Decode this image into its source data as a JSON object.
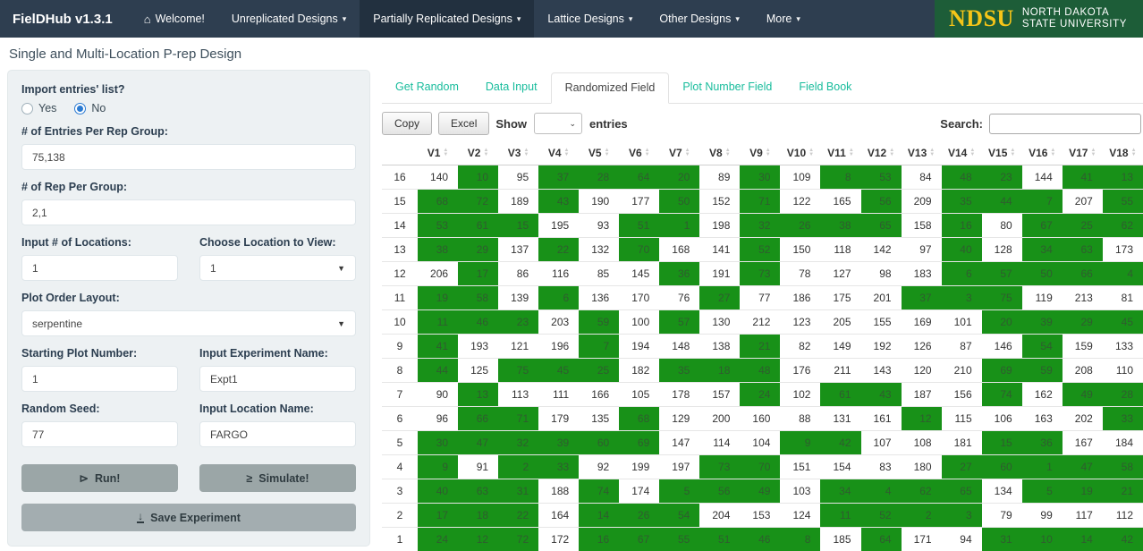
{
  "navbar": {
    "brand": "FielDHub v1.3.1",
    "items": [
      {
        "label": "Welcome!",
        "icon": "home",
        "caret": false,
        "active": false
      },
      {
        "label": "Unreplicated Designs",
        "caret": true,
        "active": false
      },
      {
        "label": "Partially Replicated Designs",
        "caret": true,
        "active": true
      },
      {
        "label": "Lattice Designs",
        "caret": true,
        "active": false
      },
      {
        "label": "Other Designs",
        "caret": true,
        "active": false
      },
      {
        "label": "More",
        "caret": true,
        "active": false
      }
    ],
    "logo": {
      "acronym": "NDSU",
      "line1": "North Dakota",
      "line2": "State University"
    }
  },
  "page_title": "Single and Multi-Location P-rep Design",
  "sidebar": {
    "import_label": "Import entries' list?",
    "radio_yes": "Yes",
    "radio_no": "No",
    "radio_selected": "No",
    "entries_per_rep": {
      "label": "# of Entries Per Rep Group:",
      "value": "75,138"
    },
    "rep_per_group": {
      "label": "# of Rep Per Group:",
      "value": "2,1"
    },
    "locations": {
      "label": "Input # of Locations:",
      "value": "1"
    },
    "location_view": {
      "label": "Choose Location to View:",
      "value": "1"
    },
    "plot_order": {
      "label": "Plot Order Layout:",
      "value": "serpentine"
    },
    "starting_plot": {
      "label": "Starting Plot Number:",
      "value": "1"
    },
    "experiment_name": {
      "label": "Input Experiment Name:",
      "value": "Expt1"
    },
    "random_seed": {
      "label": "Random Seed:",
      "value": "77"
    },
    "location_name": {
      "label": "Input Location Name:",
      "value": "FARGO"
    },
    "run_label": "Run!",
    "simulate_label": "Simulate!",
    "save_label": "Save Experiment"
  },
  "tabs": [
    {
      "label": "Get Random",
      "active": false
    },
    {
      "label": "Data Input",
      "active": false
    },
    {
      "label": "Randomized Field",
      "active": true
    },
    {
      "label": "Plot Number Field",
      "active": false
    },
    {
      "label": "Field Book",
      "active": false
    }
  ],
  "table_controls": {
    "copy": "Copy",
    "excel": "Excel",
    "show": "Show",
    "entries": "entries",
    "show_value": "",
    "search_label": "Search:",
    "search_value": ""
  },
  "table": {
    "columns": [
      "V1",
      "V2",
      "V3",
      "V4",
      "V5",
      "V6",
      "V7",
      "V8",
      "V9",
      "V10",
      "V11",
      "V12",
      "V13",
      "V14",
      "V15",
      "V16",
      "V17",
      "V18"
    ],
    "rows": [
      {
        "label": "16",
        "values": [
          140,
          10,
          95,
          37,
          28,
          64,
          20,
          89,
          30,
          109,
          8,
          53,
          84,
          48,
          23,
          144,
          41,
          13
        ],
        "green": "010111101011011011"
      },
      {
        "label": "15",
        "values": [
          68,
          72,
          189,
          43,
          190,
          177,
          50,
          152,
          71,
          122,
          165,
          56,
          209,
          35,
          44,
          7,
          207,
          55
        ],
        "green": "110100101001011101"
      },
      {
        "label": "14",
        "values": [
          53,
          61,
          15,
          195,
          93,
          51,
          1,
          198,
          32,
          26,
          38,
          65,
          158,
          16,
          80,
          67,
          25,
          62
        ],
        "green": "111001101111010111"
      },
      {
        "label": "13",
        "values": [
          38,
          29,
          137,
          22,
          132,
          70,
          168,
          141,
          52,
          150,
          118,
          142,
          97,
          40,
          128,
          34,
          63,
          173
        ],
        "green": "110101001000010110"
      },
      {
        "label": "12",
        "values": [
          206,
          17,
          86,
          116,
          85,
          145,
          36,
          191,
          73,
          78,
          127,
          98,
          183,
          6,
          57,
          50,
          66,
          4
        ],
        "green": "010000101000011111"
      },
      {
        "label": "11",
        "values": [
          19,
          58,
          139,
          6,
          136,
          170,
          76,
          27,
          77,
          186,
          175,
          201,
          37,
          3,
          75,
          119,
          213,
          81
        ],
        "green": "110100010000111000"
      },
      {
        "label": "10",
        "values": [
          11,
          46,
          23,
          203,
          59,
          100,
          57,
          130,
          212,
          123,
          205,
          155,
          169,
          101,
          20,
          39,
          29,
          45
        ],
        "green": "111010100000001111"
      },
      {
        "label": "9",
        "values": [
          41,
          193,
          121,
          196,
          7,
          194,
          148,
          138,
          21,
          82,
          149,
          192,
          126,
          87,
          146,
          54,
          159,
          133
        ],
        "green": "100010001000000100"
      },
      {
        "label": "8",
        "values": [
          44,
          125,
          75,
          45,
          25,
          182,
          35,
          18,
          48,
          176,
          211,
          143,
          120,
          210,
          69,
          59,
          208,
          110
        ],
        "green": "101110111000001100"
      },
      {
        "label": "7",
        "values": [
          90,
          13,
          113,
          111,
          166,
          105,
          178,
          157,
          24,
          102,
          61,
          43,
          187,
          156,
          74,
          162,
          49,
          28
        ],
        "green": "010000001011001011"
      },
      {
        "label": "6",
        "values": [
          96,
          66,
          71,
          179,
          135,
          68,
          129,
          200,
          160,
          88,
          131,
          161,
          12,
          115,
          106,
          163,
          202,
          33
        ],
        "green": "011001000000100001"
      },
      {
        "label": "5",
        "values": [
          30,
          47,
          32,
          39,
          60,
          69,
          147,
          114,
          104,
          9,
          42,
          107,
          108,
          181,
          15,
          36,
          167,
          184
        ],
        "green": "111111000110001100"
      },
      {
        "label": "4",
        "values": [
          9,
          91,
          2,
          33,
          92,
          199,
          197,
          73,
          70,
          151,
          154,
          83,
          180,
          27,
          60,
          1,
          47,
          58
        ],
        "green": "101100011000011111"
      },
      {
        "label": "3",
        "values": [
          40,
          63,
          31,
          188,
          74,
          174,
          5,
          56,
          49,
          103,
          34,
          4,
          62,
          65,
          134,
          5,
          19,
          21
        ],
        "green": "111010111011110111"
      },
      {
        "label": "2",
        "values": [
          17,
          18,
          22,
          164,
          14,
          26,
          54,
          204,
          153,
          124,
          11,
          52,
          2,
          3,
          79,
          99,
          117,
          112
        ],
        "green": "111011100011110000"
      },
      {
        "label": "1",
        "values": [
          24,
          12,
          72,
          172,
          16,
          67,
          55,
          51,
          46,
          8,
          185,
          64,
          171,
          94,
          31,
          10,
          14,
          42
        ],
        "green": "111011111101001111"
      }
    ]
  },
  "colors": {
    "navbar": "#2e3e50",
    "navbar-active": "#22303f",
    "teal": "#18bc9c",
    "ndsu-green": "#1d5d38",
    "ndsu-yellow": "#f5c518",
    "green": "#189118",
    "green-text": "#2f5d2f",
    "accent-blue": "#2a7ad2"
  }
}
